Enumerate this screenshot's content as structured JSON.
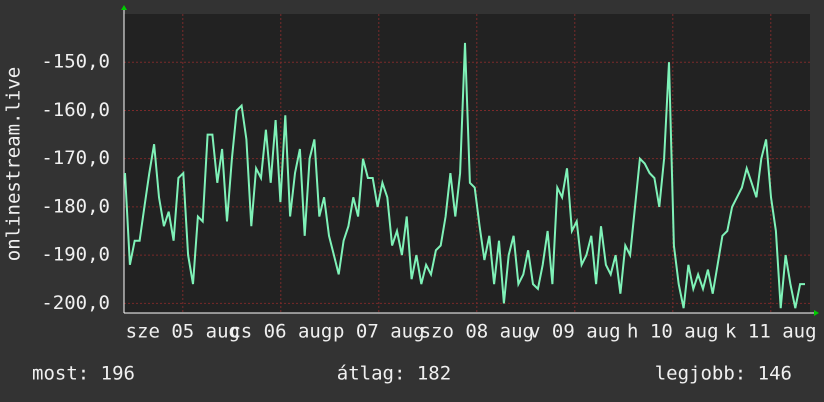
{
  "chart_data": {
    "type": "line",
    "y_label": "onlinestream.live",
    "series": [
      {
        "name": "onlinestream.live",
        "color": "#7ff2b8",
        "values": [
          -173,
          -192,
          -187,
          -187,
          -180,
          -173,
          -167,
          -178,
          -184,
          -181,
          -187,
          -174,
          -173,
          -190,
          -196,
          -182,
          -183,
          -165,
          -165,
          -175,
          -168,
          -183,
          -170,
          -160,
          -159,
          -166,
          -184,
          -172,
          -174,
          -164,
          -175,
          -162,
          -179,
          -161,
          -182,
          -173,
          -168,
          -186,
          -170,
          -166,
          -182,
          -178,
          -186,
          -190,
          -194,
          -187,
          -184,
          -178,
          -182,
          -170,
          -174,
          -174,
          -180,
          -175,
          -178,
          -188,
          -185,
          -190,
          -182,
          -195,
          -190,
          -196,
          -192,
          -194,
          -189,
          -188,
          -182,
          -173,
          -182,
          -173,
          -146,
          -175,
          -176,
          -184,
          -191,
          -186,
          -196,
          -187,
          -200,
          -190,
          -186,
          -196,
          -194,
          -189,
          -196,
          -197,
          -192,
          -185,
          -196,
          -176,
          -178,
          -172,
          -185,
          -183,
          -192,
          -190,
          -186,
          -196,
          -184,
          -192,
          -194,
          -190,
          -198,
          -188,
          -190,
          -180,
          -170,
          -171,
          -173,
          -174,
          -180,
          -170,
          -150,
          -188,
          -196,
          -201,
          -192,
          -197,
          -194,
          -197,
          -193,
          -198,
          -192,
          -186,
          -185,
          -180,
          -178,
          -176,
          -172,
          -175,
          -178,
          -170,
          -166,
          -178,
          -185,
          -201,
          -190,
          -196,
          -201,
          -196,
          -196
        ]
      }
    ],
    "ylim": [
      -202,
      -140
    ],
    "yticks": [
      {
        "value": -200,
        "label": "-200,0"
      },
      {
        "value": -190,
        "label": "-190,0"
      },
      {
        "value": -180,
        "label": "-180,0"
      },
      {
        "value": -170,
        "label": "-170,0"
      },
      {
        "value": -160,
        "label": "-160,0"
      },
      {
        "value": -150,
        "label": "-150,0"
      }
    ],
    "xlim": [
      0,
      7
    ],
    "xticks": [
      {
        "value": 0.6,
        "label": "sze 05 aug"
      },
      {
        "value": 1.6,
        "label": "cs 06 aug"
      },
      {
        "value": 2.6,
        "label": "p 07 aug"
      },
      {
        "value": 3.6,
        "label": "szo 08 aug"
      },
      {
        "value": 4.6,
        "label": "v 09 aug"
      },
      {
        "value": 5.6,
        "label": "h 10 aug"
      },
      {
        "value": 6.6,
        "label": "k 11 aug"
      }
    ],
    "grid": true,
    "footer": [
      "most: 196",
      "átlag: 182",
      "legjobb: 146"
    ]
  }
}
